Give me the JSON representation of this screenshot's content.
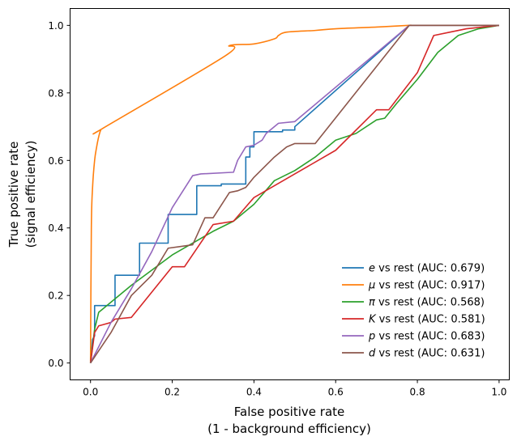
{
  "chart_data": {
    "type": "line",
    "xlabel_lines": [
      "False positive rate",
      "(1 - background efficiency)"
    ],
    "ylabel_lines": [
      "True positive rate",
      "(signal efficiency)"
    ],
    "xlim": [
      -0.05,
      1.025
    ],
    "ylim": [
      -0.05,
      1.05
    ],
    "xticks": [
      0.0,
      0.2,
      0.4,
      0.6,
      0.8,
      1.0
    ],
    "yticks": [
      0.0,
      0.2,
      0.4,
      0.6,
      0.8,
      1.0
    ],
    "xtick_labels": [
      "0.0",
      "0.2",
      "0.4",
      "0.6",
      "0.8",
      "1.0"
    ],
    "ytick_labels": [
      "0.0",
      "0.2",
      "0.4",
      "0.6",
      "0.8",
      "1.0"
    ],
    "grid": false,
    "legend_position": "lower-right",
    "series": [
      {
        "name": "e vs rest (AUC: 0.679)",
        "symbol": "e",
        "suffix": " vs rest (AUC: 0.679)",
        "color": "#1f77b4",
        "x": [
          0.0,
          0.005,
          0.01,
          0.01,
          0.06,
          0.06,
          0.12,
          0.12,
          0.19,
          0.19,
          0.26,
          0.26,
          0.32,
          0.32,
          0.38,
          0.38,
          0.39,
          0.39,
          0.4,
          0.4,
          0.47,
          0.47,
          0.5,
          0.5,
          0.78,
          0.8,
          1.0
        ],
        "y": [
          0.0,
          0.07,
          0.08,
          0.17,
          0.17,
          0.26,
          0.26,
          0.355,
          0.355,
          0.44,
          0.44,
          0.525,
          0.525,
          0.53,
          0.53,
          0.61,
          0.61,
          0.64,
          0.64,
          0.685,
          0.685,
          0.69,
          0.69,
          0.7,
          1.0,
          1.0,
          1.0
        ]
      },
      {
        "name": "μ vs rest (AUC: 0.917)",
        "symbol": "μ",
        "suffix": " vs rest (AUC: 0.917)",
        "color": "#ff7f0e",
        "x": [
          0.0,
          0.002,
          0.005,
          0.01,
          0.015,
          0.02,
          0.025,
          0.03,
          0.33,
          0.34,
          0.4,
          0.45,
          0.46,
          0.48,
          0.55,
          0.6,
          0.7,
          0.78,
          0.8,
          1.0
        ],
        "y": [
          0.0,
          0.4,
          0.52,
          0.6,
          0.64,
          0.67,
          0.69,
          0.695,
          0.91,
          0.94,
          0.945,
          0.96,
          0.97,
          0.98,
          0.985,
          0.99,
          0.995,
          1.0,
          1.0,
          1.0
        ],
        "smooth": true
      },
      {
        "name": "π vs rest (AUC: 0.568)",
        "symbol": "π",
        "suffix": " vs rest (AUC: 0.568)",
        "color": "#2ca02c",
        "x": [
          0.0,
          0.01,
          0.02,
          0.05,
          0.1,
          0.2,
          0.3,
          0.35,
          0.4,
          0.45,
          0.5,
          0.55,
          0.6,
          0.65,
          0.7,
          0.72,
          0.75,
          0.8,
          0.85,
          0.9,
          0.95,
          1.0
        ],
        "y": [
          0.0,
          0.1,
          0.15,
          0.18,
          0.23,
          0.32,
          0.39,
          0.42,
          0.47,
          0.54,
          0.57,
          0.61,
          0.66,
          0.68,
          0.72,
          0.725,
          0.77,
          0.84,
          0.92,
          0.97,
          0.99,
          1.0
        ]
      },
      {
        "name": "K vs rest (AUC: 0.581)",
        "symbol": "K",
        "suffix": " vs rest (AUC: 0.581)",
        "color": "#d62728",
        "x": [
          0.0,
          0.01,
          0.02,
          0.05,
          0.06,
          0.1,
          0.2,
          0.23,
          0.3,
          0.35,
          0.4,
          0.5,
          0.6,
          0.7,
          0.73,
          0.8,
          0.84,
          0.88,
          0.92,
          0.96,
          1.0
        ],
        "y": [
          0.0,
          0.09,
          0.11,
          0.12,
          0.13,
          0.135,
          0.285,
          0.285,
          0.41,
          0.42,
          0.49,
          0.56,
          0.63,
          0.75,
          0.75,
          0.86,
          0.97,
          0.98,
          0.99,
          0.995,
          1.0
        ]
      },
      {
        "name": "p vs rest (AUC: 0.683)",
        "symbol": "p",
        "suffix": " vs rest (AUC: 0.683)",
        "color": "#9467bd",
        "x": [
          0.0,
          0.05,
          0.1,
          0.15,
          0.2,
          0.25,
          0.27,
          0.35,
          0.36,
          0.38,
          0.4,
          0.42,
          0.43,
          0.46,
          0.5,
          0.78,
          1.0
        ],
        "y": [
          0.0,
          0.12,
          0.22,
          0.33,
          0.46,
          0.555,
          0.56,
          0.565,
          0.6,
          0.64,
          0.645,
          0.66,
          0.68,
          0.71,
          0.715,
          1.0,
          1.0
        ]
      },
      {
        "name": "d vs rest (AUC: 0.631)",
        "symbol": "d",
        "suffix": " vs rest (AUC: 0.631)",
        "color": "#8c564b",
        "x": [
          0.0,
          0.05,
          0.1,
          0.15,
          0.19,
          0.22,
          0.25,
          0.28,
          0.3,
          0.34,
          0.36,
          0.38,
          0.4,
          0.45,
          0.48,
          0.5,
          0.55,
          0.78,
          1.0
        ],
        "y": [
          0.0,
          0.09,
          0.2,
          0.26,
          0.34,
          0.345,
          0.35,
          0.43,
          0.43,
          0.505,
          0.51,
          0.52,
          0.55,
          0.61,
          0.64,
          0.65,
          0.65,
          1.0,
          1.0
        ]
      }
    ]
  }
}
